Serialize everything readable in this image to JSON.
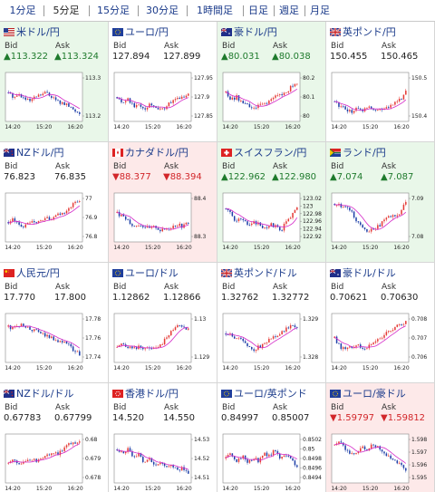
{
  "tabs": [
    {
      "label": "1分足",
      "active": false
    },
    {
      "label": "5分足",
      "active": true
    },
    {
      "label": "15分足",
      "active": false
    },
    {
      "label": "30分足",
      "active": false
    },
    {
      "label": "1時間足",
      "active": false
    },
    {
      "label": "日足",
      "active": false
    },
    {
      "label": "週足",
      "active": false
    },
    {
      "label": "月足",
      "active": false
    }
  ],
  "labels": {
    "bid": "Bid",
    "ask": "Ask"
  },
  "colors": {
    "up_bg": "#e9f7e9",
    "down_bg": "#fde9e9",
    "link": "#1a3a8a",
    "up_text": "#1e7a2c",
    "down_text": "#d2262a",
    "candle_up": "#e53935",
    "candle_down": "#1e3fa8",
    "ma_line": "#d428c8"
  },
  "pairs": [
    {
      "name": "米ドル/円",
      "flag": "us",
      "bid": "▲113.322",
      "ask": "▲113.324",
      "state": "up",
      "yticks": [
        "113.3",
        "113.2"
      ],
      "xticks": [
        "14:20",
        "15:20",
        "16:20"
      ]
    },
    {
      "name": "ユーロ/円",
      "flag": "eu",
      "bid": "127.894",
      "ask": "127.899",
      "state": "neutral",
      "yticks": [
        "127.95",
        "127.9",
        "127.85"
      ],
      "xticks": [
        "14:20",
        "15:20",
        "16:20"
      ]
    },
    {
      "name": "豪ドル/円",
      "flag": "au",
      "bid": "▲80.031",
      "ask": "▲80.038",
      "state": "up",
      "yticks": [
        "80.2",
        "80.1",
        "80"
      ],
      "xticks": [
        "14:20",
        "15:20",
        "16:20"
      ]
    },
    {
      "name": "英ポンド/円",
      "flag": "gb",
      "bid": "150.455",
      "ask": "150.465",
      "state": "neutral",
      "yticks": [
        "150.5",
        "150.4"
      ],
      "xticks": [
        "14:20",
        "15:20",
        "16:20"
      ]
    },
    {
      "name": "NZドル/円",
      "flag": "nz",
      "bid": "76.823",
      "ask": "76.835",
      "state": "neutral",
      "yticks": [
        "77",
        "76.9",
        "76.8"
      ],
      "xticks": [
        "14:20",
        "15:20",
        "16:20"
      ]
    },
    {
      "name": "カナダドル/円",
      "flag": "ca",
      "bid": "▼88.377",
      "ask": "▼88.394",
      "state": "down",
      "yticks": [
        "88.4",
        "88.3"
      ],
      "xticks": [
        "14:20",
        "15:20",
        "16:20"
      ]
    },
    {
      "name": "スイスフラン/円",
      "flag": "ch",
      "bid": "▲122.962",
      "ask": "▲122.980",
      "state": "up",
      "yticks": [
        "123.02",
        "123",
        "122.98",
        "122.96",
        "122.94",
        "122.92"
      ],
      "xticks": [
        "14:20",
        "15:20",
        "16:20"
      ]
    },
    {
      "name": "ランド/円",
      "flag": "za",
      "bid": "▲7.074",
      "ask": "▲7.087",
      "state": "up",
      "yticks": [
        "7.09",
        "7.08"
      ],
      "xticks": [
        "14:20",
        "15:20",
        "16:20"
      ]
    },
    {
      "name": "人民元/円",
      "flag": "cn",
      "bid": "17.770",
      "ask": "17.800",
      "state": "neutral",
      "yticks": [
        "17.78",
        "17.76",
        "17.74"
      ],
      "xticks": [
        "14:20",
        "15:20",
        "16:20"
      ]
    },
    {
      "name": "ユーロ/ドル",
      "flag": "eu",
      "bid": "1.12862",
      "ask": "1.12866",
      "state": "neutral",
      "yticks": [
        "1.13",
        "1.129"
      ],
      "xticks": [
        "14:20",
        "15:20",
        "16:20"
      ]
    },
    {
      "name": "英ポンド/ドル",
      "flag": "gb",
      "bid": "1.32762",
      "ask": "1.32772",
      "state": "neutral",
      "yticks": [
        "1.329",
        "1.328"
      ],
      "xticks": [
        "14:20",
        "15:20",
        "16:20"
      ]
    },
    {
      "name": "豪ドル/ドル",
      "flag": "au",
      "bid": "0.70621",
      "ask": "0.70630",
      "state": "neutral",
      "yticks": [
        "0.708",
        "0.707",
        "0.706"
      ],
      "xticks": [
        "14:20",
        "15:20",
        "16:20"
      ]
    },
    {
      "name": "NZドル/ドル",
      "flag": "nz",
      "bid": "0.67783",
      "ask": "0.67799",
      "state": "neutral",
      "yticks": [
        "0.68",
        "0.679",
        "0.678"
      ],
      "xticks": [
        "14:20",
        "15:20",
        "16:20"
      ]
    },
    {
      "name": "香港ドル/円",
      "flag": "hk",
      "bid": "14.520",
      "ask": "14.550",
      "state": "neutral",
      "yticks": [
        "14.53",
        "14.52",
        "14.51"
      ],
      "xticks": [
        "14:20",
        "15:20",
        "16:20"
      ]
    },
    {
      "name": "ユーロ/英ポンド",
      "flag": "eu",
      "bid": "0.84997",
      "ask": "0.85007",
      "state": "neutral",
      "yticks": [
        "0.8502",
        "0.85",
        "0.8498",
        "0.8496",
        "0.8494"
      ],
      "xticks": [
        "14:20",
        "15:20",
        "16:20"
      ]
    },
    {
      "name": "ユーロ/豪ドル",
      "flag": "eu",
      "bid": "▼1.59797",
      "ask": "▼1.59812",
      "state": "down",
      "yticks": [
        "1.598",
        "1.597",
        "1.596",
        "1.595"
      ],
      "xticks": [
        "14:20",
        "15:20",
        "16:20"
      ]
    }
  ]
}
